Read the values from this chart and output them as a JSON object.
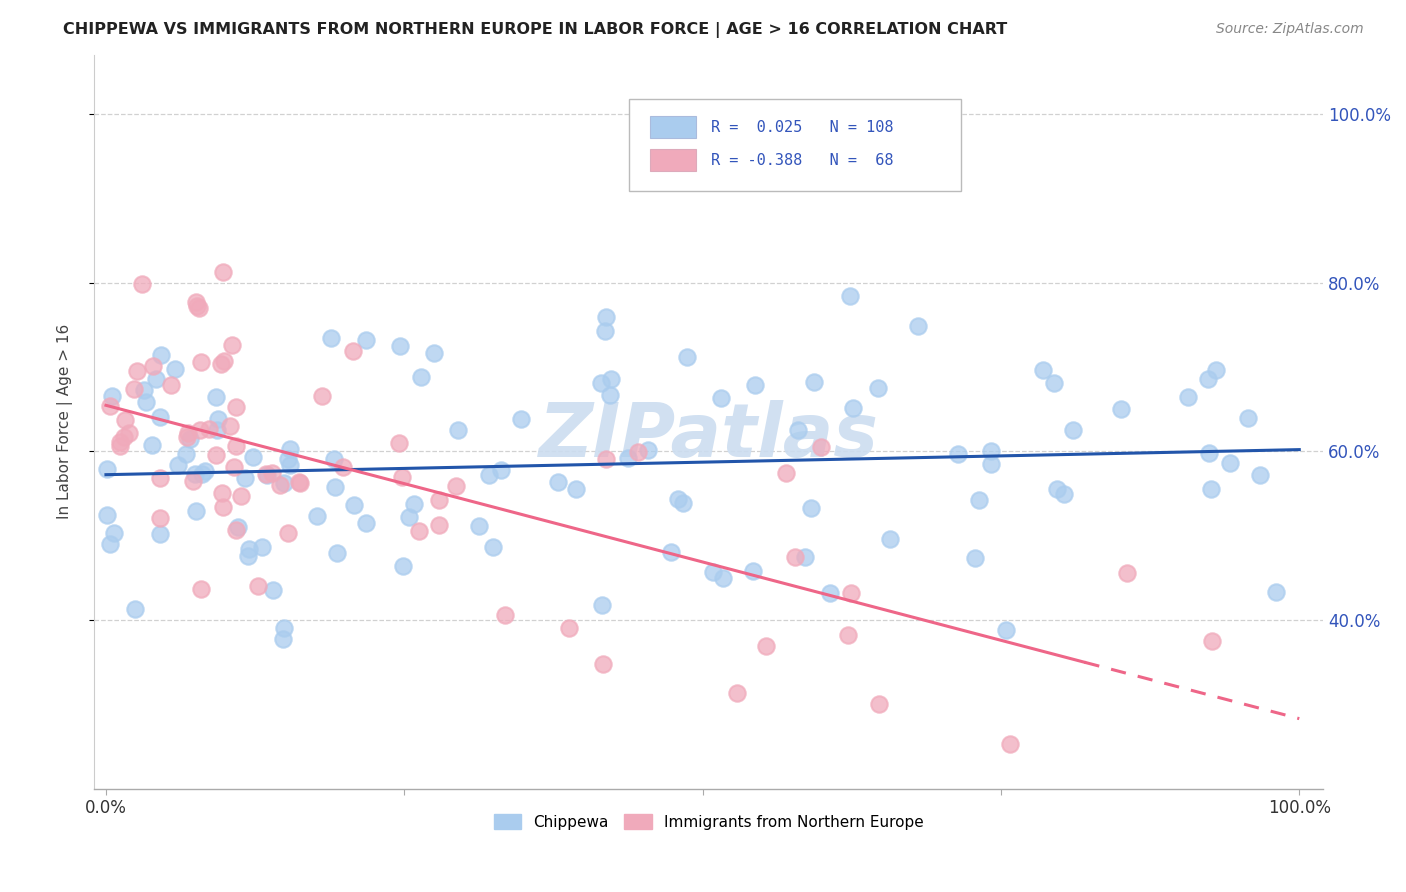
{
  "title": "CHIPPEWA VS IMMIGRANTS FROM NORTHERN EUROPE IN LABOR FORCE | AGE > 16 CORRELATION CHART",
  "source": "Source: ZipAtlas.com",
  "ylabel": "In Labor Force | Age > 16",
  "r_blue": 0.025,
  "n_blue": 108,
  "r_pink": -0.388,
  "n_pink": 68,
  "color_blue": "#aaccee",
  "color_pink": "#f0aabb",
  "line_blue": "#2255aa",
  "line_pink": "#ee6688",
  "watermark_color": "#ccddf0",
  "background": "#ffffff",
  "grid_color": "#cccccc",
  "title_color": "#222222",
  "source_color": "#888888",
  "axis_label_color": "#3355bb",
  "ylabel_color": "#444444",
  "ylim_min": 0.2,
  "ylim_max": 1.07,
  "xlim_min": -0.01,
  "xlim_max": 1.02
}
